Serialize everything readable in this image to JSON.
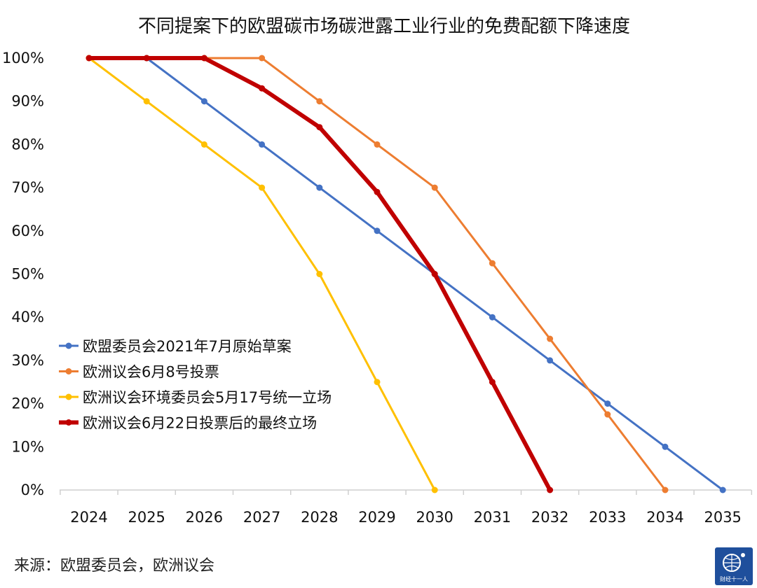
{
  "chart_data": {
    "type": "line",
    "title": "不同提案下的欧盟碳市场碳泄露工业行业的免费配额下降速度",
    "x": [
      2024,
      2025,
      2026,
      2027,
      2028,
      2029,
      2030,
      2031,
      2032,
      2033,
      2034,
      2035
    ],
    "x_tick_labels": [
      "2024",
      "2025",
      "2026",
      "2027",
      "2028",
      "2029",
      "2030",
      "2031",
      "2032",
      "2033",
      "2034",
      "2035"
    ],
    "y_tick_labels": [
      "0%",
      "10%",
      "20%",
      "30%",
      "40%",
      "50%",
      "60%",
      "70%",
      "80%",
      "90%",
      "100%"
    ],
    "ylim": [
      0,
      100
    ],
    "ylabel": "",
    "xlabel": "",
    "grid": false,
    "legend_position": "bottom-left inside",
    "series": [
      {
        "name": "欧盟委员会2021年7月原始草案",
        "color": "#4472c4",
        "width": 3,
        "points": [
          [
            2025,
            100
          ],
          [
            2026,
            90
          ],
          [
            2027,
            80
          ],
          [
            2028,
            70
          ],
          [
            2029,
            60
          ],
          [
            2030,
            50
          ],
          [
            2031,
            40
          ],
          [
            2032,
            30
          ],
          [
            2033,
            20
          ],
          [
            2034,
            10
          ],
          [
            2035,
            0
          ]
        ]
      },
      {
        "name": "欧洲议会6月8号投票",
        "color": "#ed7d31",
        "width": 3,
        "points": [
          [
            2024,
            100
          ],
          [
            2025,
            100
          ],
          [
            2026,
            100
          ],
          [
            2027,
            100
          ],
          [
            2028,
            90
          ],
          [
            2029,
            80
          ],
          [
            2030,
            70
          ],
          [
            2031,
            52.5
          ],
          [
            2032,
            35
          ],
          [
            2033,
            17.5
          ],
          [
            2034,
            0
          ]
        ]
      },
      {
        "name": "欧洲议会环境委员会5月17号统一立场",
        "color": "#ffc000",
        "width": 3,
        "points": [
          [
            2024,
            100
          ],
          [
            2025,
            90
          ],
          [
            2026,
            80
          ],
          [
            2027,
            70
          ],
          [
            2028,
            50
          ],
          [
            2029,
            25
          ],
          [
            2030,
            0
          ]
        ]
      },
      {
        "name": "欧洲议会6月22日投票后的最终立场",
        "color": "#c00000",
        "width": 6,
        "points": [
          [
            2024,
            100
          ],
          [
            2025,
            100
          ],
          [
            2026,
            100
          ],
          [
            2027,
            93
          ],
          [
            2028,
            84
          ],
          [
            2029,
            69
          ],
          [
            2030,
            50
          ],
          [
            2031,
            25
          ],
          [
            2032,
            0
          ]
        ]
      }
    ]
  },
  "source_text": "来源：欧盟委员会，欧洲议会",
  "logo_text": "财经十一人"
}
